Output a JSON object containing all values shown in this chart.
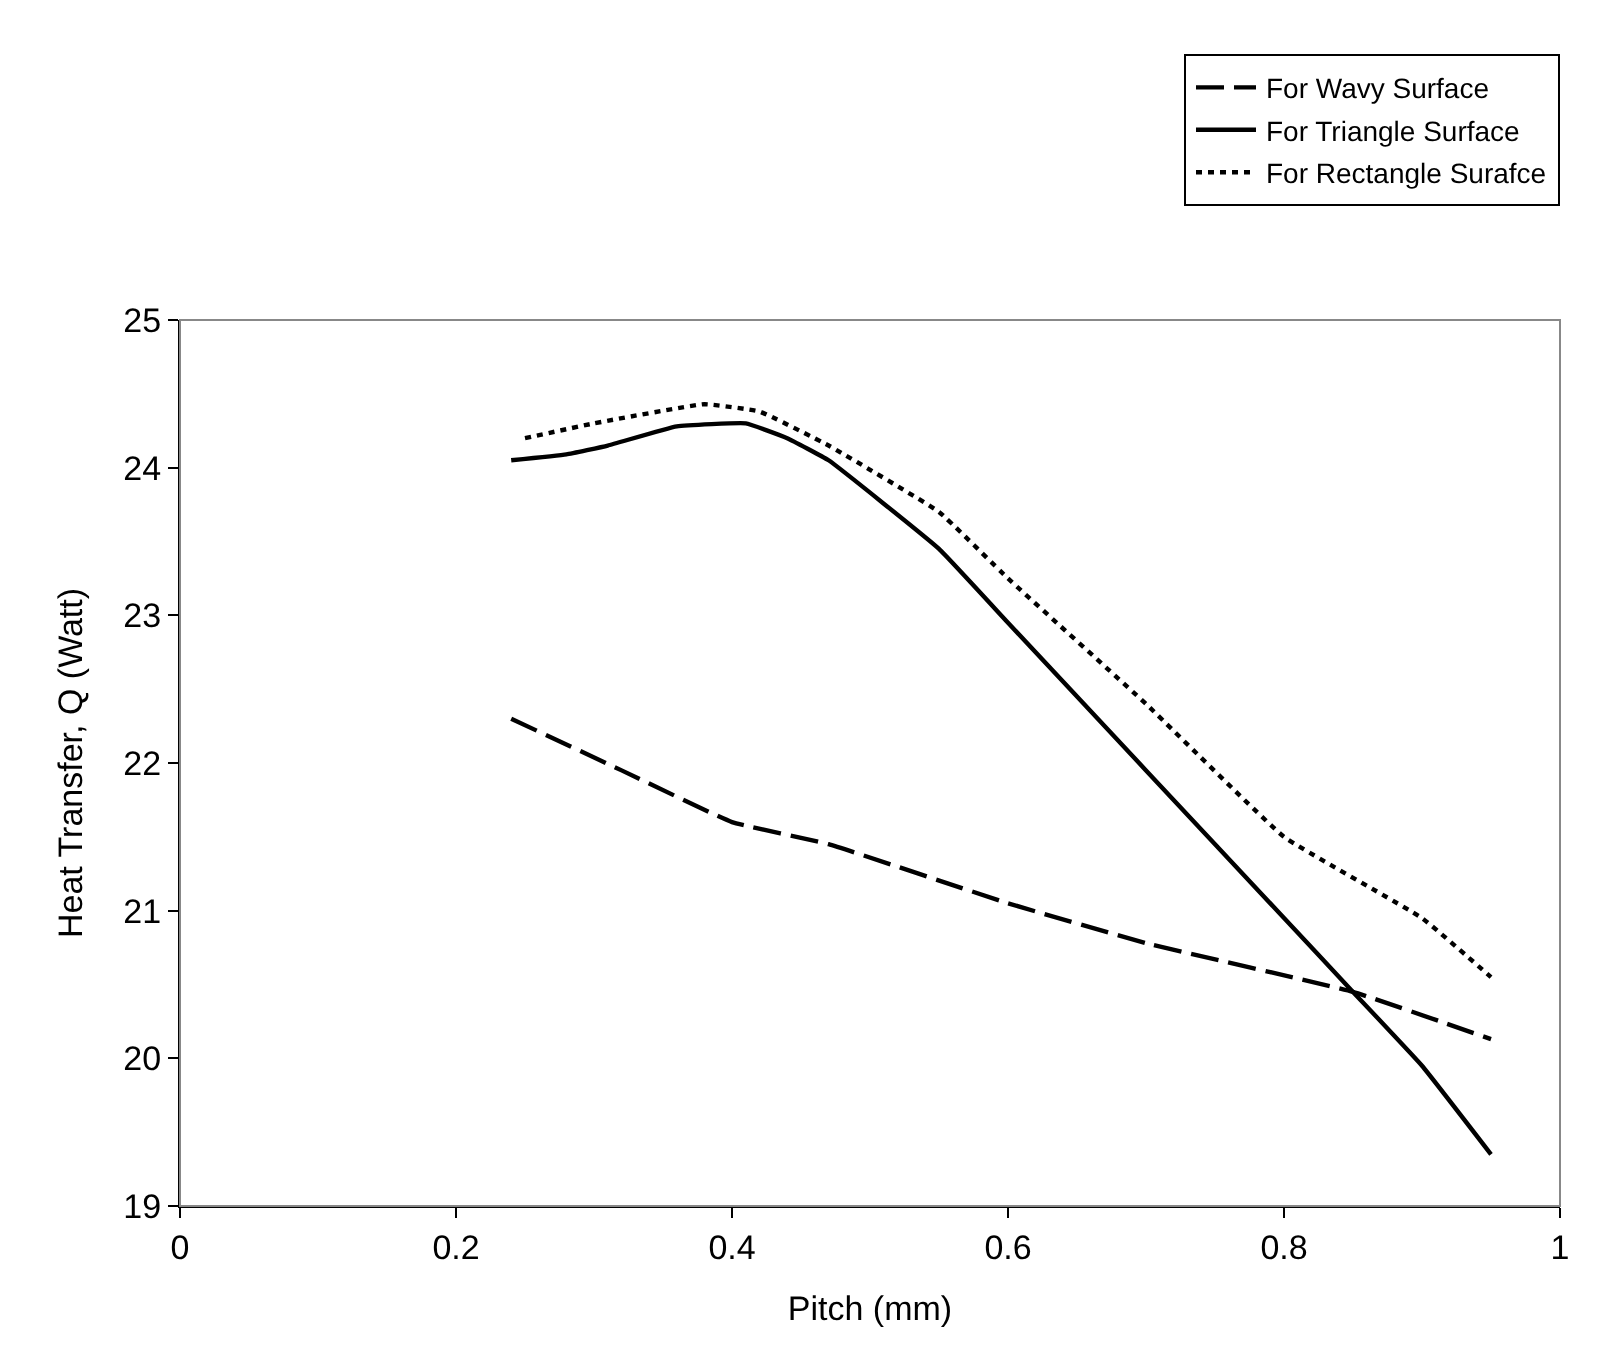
{
  "chart_data": {
    "type": "line",
    "xlabel": "Pitch (mm)",
    "ylabel": "Heat Transfer, Q (Watt)",
    "xlim": [
      0,
      1
    ],
    "xticks": [
      0,
      0.2,
      0.4,
      0.6,
      0.8,
      1
    ],
    "ylim": [
      19,
      25
    ],
    "yticks": [
      19,
      20,
      21,
      22,
      23,
      24,
      25
    ],
    "legend": "top right",
    "marker": "none",
    "series": [
      {
        "name": "For Wavy Surface",
        "color": "#000000",
        "line_style": "dashed",
        "x": [
          0.24,
          0.32,
          0.4,
          0.47,
          0.6,
          0.7,
          0.85,
          0.95
        ],
        "values": [
          22.3,
          21.95,
          21.6,
          21.45,
          21.05,
          20.78,
          20.45,
          20.13
        ]
      },
      {
        "name": "For Triangle Surface",
        "color": "#000000",
        "line_style": "solid",
        "x": [
          0.24,
          0.28,
          0.31,
          0.36,
          0.41,
          0.44,
          0.47,
          0.55,
          0.6,
          0.7,
          0.8,
          0.85,
          0.9,
          0.95
        ],
        "values": [
          24.05,
          24.09,
          24.15,
          24.28,
          24.3,
          24.2,
          24.05,
          23.45,
          22.95,
          21.95,
          20.95,
          20.45,
          19.95,
          19.35
        ]
      },
      {
        "name": "For Rectangle Surafce",
        "color": "#000000",
        "line_style": "dotted",
        "x": [
          0.25,
          0.3,
          0.38,
          0.42,
          0.47,
          0.55,
          0.6,
          0.7,
          0.8,
          0.9,
          0.95
        ],
        "values": [
          24.2,
          24.3,
          24.43,
          24.38,
          24.15,
          23.7,
          23.25,
          22.4,
          21.5,
          20.95,
          20.55
        ]
      }
    ]
  }
}
